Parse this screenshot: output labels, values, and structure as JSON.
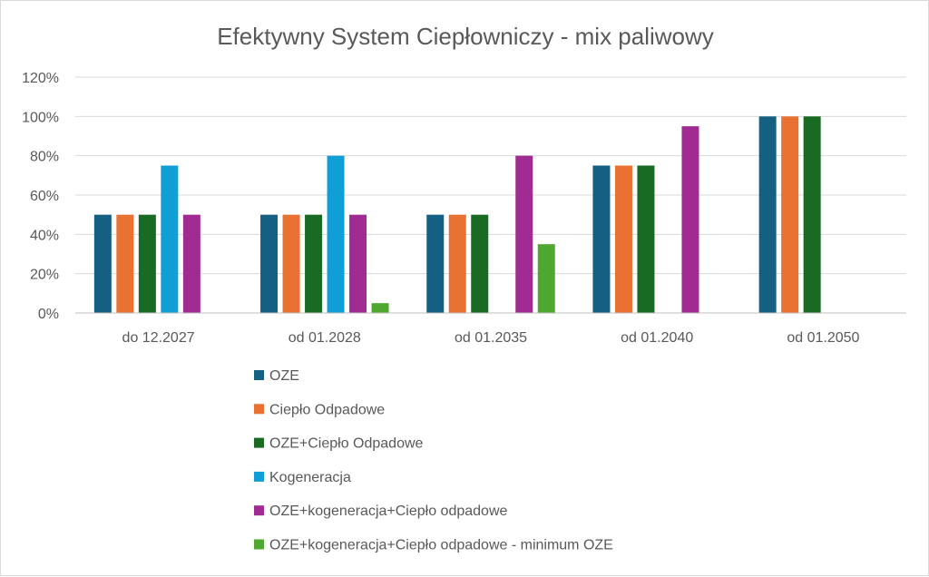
{
  "chart_data": {
    "type": "bar",
    "title": "Efektywny System Ciepłowniczy - mix paliwowy",
    "xlabel": "",
    "ylabel": "",
    "ylim": [
      0,
      120
    ],
    "yticks": [
      "0%",
      "20%",
      "40%",
      "60%",
      "80%",
      "100%",
      "120%"
    ],
    "categories": [
      "do 12.2027",
      "od 01.2028",
      "od 01.2035",
      "od 01.2040",
      "od 01.2050"
    ],
    "grid": true,
    "legend": "bottom",
    "series": [
      {
        "name": "OZE",
        "color": "#156082",
        "values": [
          50,
          50,
          50,
          75,
          100
        ]
      },
      {
        "name": "Ciepło Odpadowe",
        "color": "#E97132",
        "values": [
          50,
          50,
          50,
          75,
          100
        ]
      },
      {
        "name": "OZE+Ciepło Odpadowe",
        "color": "#196B24",
        "values": [
          50,
          50,
          50,
          75,
          100
        ]
      },
      {
        "name": "Kogeneracja",
        "color": "#0F9ED5",
        "values": [
          75,
          80,
          0,
          0,
          0
        ]
      },
      {
        "name": "OZE+kogeneracja+Ciepło odpadowe",
        "color": "#A02B93",
        "values": [
          50,
          50,
          80,
          95,
          0
        ]
      },
      {
        "name": "OZE+kogeneracja+Ciepło odpadowe - minimum OZE",
        "color": "#4EA72E",
        "values": [
          0,
          5,
          35,
          0,
          0
        ]
      }
    ]
  }
}
